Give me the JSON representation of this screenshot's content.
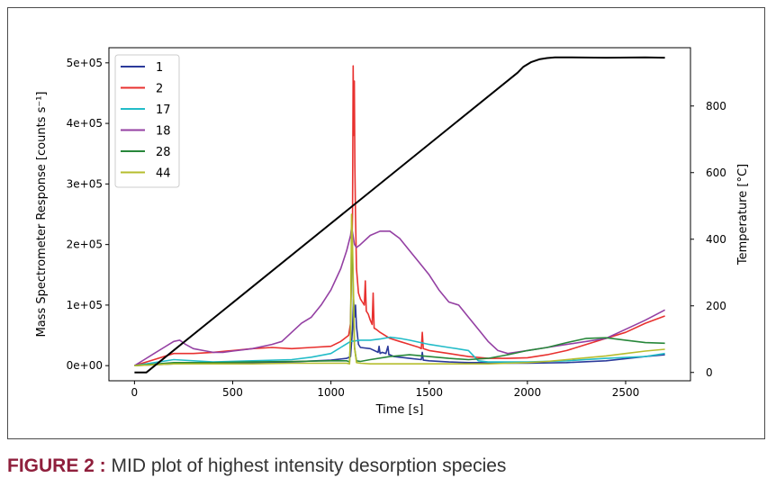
{
  "caption": {
    "label": "FIGURE 2 :",
    "text": "MID plot of highest intensity desorption species"
  },
  "chart_data": {
    "type": "line",
    "xlabel": "Time [s]",
    "ylabel": "Mass Spectrometer Response [counts s⁻¹]",
    "y2label": "Temperature [°C]",
    "xlim": [
      -130,
      2830
    ],
    "ylim": [
      -25000,
      525000
    ],
    "y2lim": [
      -25,
      975
    ],
    "xticks": [
      0,
      500,
      1000,
      1500,
      2000,
      2500
    ],
    "xtick_labels": [
      "0",
      "500",
      "1000",
      "1500",
      "2000",
      "2500"
    ],
    "yticks": [
      0,
      100000,
      200000,
      300000,
      400000,
      500000
    ],
    "ytick_labels": [
      "0e+00",
      "1e+05",
      "2e+05",
      "3e+05",
      "4e+05",
      "5e+05"
    ],
    "y2ticks": [
      0,
      200,
      400,
      600,
      800
    ],
    "y2tick_labels": [
      "0",
      "200",
      "400",
      "600",
      "800"
    ],
    "legend_position": "top-left",
    "series": [
      {
        "name": "1",
        "color": "#2b3a9a",
        "axis": "left",
        "x": [
          0,
          200,
          400,
          600,
          800,
          1000,
          1080,
          1100,
          1110,
          1115,
          1120,
          1125,
          1130,
          1140,
          1150,
          1200,
          1240,
          1245,
          1250,
          1260,
          1280,
          1290,
          1295,
          1300,
          1320,
          1400,
          1460,
          1465,
          1470,
          1500,
          1600,
          1700,
          1800,
          1900,
          2000,
          2200,
          2400,
          2600,
          2700
        ],
        "y": [
          0,
          3000,
          4000,
          5000,
          6000,
          9000,
          12000,
          15000,
          60000,
          110000,
          80000,
          100000,
          65000,
          35000,
          30000,
          28000,
          22000,
          32000,
          20000,
          22000,
          20000,
          32000,
          18000,
          18000,
          15000,
          12000,
          10000,
          22000,
          9000,
          8000,
          6000,
          5000,
          5000,
          4000,
          4000,
          5000,
          8000,
          15000,
          18000
        ]
      },
      {
        "name": "2",
        "color": "#e8312f",
        "axis": "left",
        "x": [
          0,
          100,
          200,
          300,
          400,
          500,
          600,
          700,
          800,
          900,
          1000,
          1050,
          1090,
          1100,
          1110,
          1113,
          1116,
          1119,
          1122,
          1125,
          1130,
          1140,
          1150,
          1160,
          1170,
          1175,
          1180,
          1190,
          1200,
          1210,
          1215,
          1220,
          1230,
          1250,
          1300,
          1350,
          1400,
          1450,
          1460,
          1465,
          1470,
          1500,
          1600,
          1700,
          1800,
          1900,
          2000,
          2100,
          2200,
          2300,
          2400,
          2500,
          2600,
          2700
        ],
        "y": [
          0,
          10000,
          20000,
          20000,
          22000,
          25000,
          28000,
          30000,
          28000,
          30000,
          32000,
          40000,
          50000,
          70000,
          250000,
          495000,
          380000,
          470000,
          330000,
          250000,
          160000,
          120000,
          110000,
          105000,
          100000,
          140000,
          90000,
          85000,
          75000,
          68000,
          120000,
          62000,
          60000,
          55000,
          45000,
          40000,
          35000,
          30000,
          28000,
          55000,
          28000,
          25000,
          20000,
          15000,
          12000,
          12000,
          13000,
          18000,
          25000,
          35000,
          45000,
          55000,
          70000,
          82000
        ]
      },
      {
        "name": "17",
        "color": "#22bcc8",
        "axis": "left",
        "x": [
          0,
          200,
          400,
          600,
          800,
          900,
          1000,
          1050,
          1100,
          1150,
          1200,
          1250,
          1300,
          1350,
          1400,
          1500,
          1600,
          1700,
          1750,
          1800,
          1900,
          2000,
          2200,
          2400,
          2600,
          2700
        ],
        "y": [
          0,
          10000,
          6000,
          8000,
          10000,
          14000,
          20000,
          30000,
          40000,
          42000,
          42000,
          44000,
          47000,
          45000,
          42000,
          35000,
          30000,
          25000,
          8000,
          6000,
          6000,
          6000,
          8000,
          12000,
          15000,
          20000
        ]
      },
      {
        "name": "18",
        "color": "#9440a3",
        "axis": "left",
        "x": [
          0,
          50,
          100,
          150,
          200,
          230,
          260,
          300,
          350,
          400,
          450,
          500,
          600,
          700,
          750,
          800,
          850,
          900,
          950,
          1000,
          1050,
          1080,
          1100,
          1105,
          1110,
          1120,
          1130,
          1150,
          1200,
          1250,
          1300,
          1350,
          1400,
          1450,
          1500,
          1550,
          1600,
          1650,
          1700,
          1750,
          1800,
          1850,
          1900,
          2000,
          2100,
          2200,
          2300,
          2400,
          2500,
          2600,
          2700
        ],
        "y": [
          0,
          10000,
          20000,
          30000,
          40000,
          42000,
          35000,
          28000,
          25000,
          22000,
          22000,
          24000,
          28000,
          35000,
          40000,
          55000,
          70000,
          80000,
          100000,
          125000,
          160000,
          190000,
          215000,
          228000,
          220000,
          200000,
          195000,
          200000,
          215000,
          222000,
          222000,
          210000,
          190000,
          170000,
          150000,
          125000,
          105000,
          100000,
          80000,
          60000,
          40000,
          25000,
          20000,
          25000,
          30000,
          35000,
          40000,
          45000,
          60000,
          75000,
          92000
        ]
      },
      {
        "name": "28",
        "color": "#27873a",
        "axis": "left",
        "x": [
          0,
          200,
          400,
          600,
          800,
          1000,
          1080,
          1095,
          1100,
          1105,
          1110,
          1115,
          1120,
          1130,
          1150,
          1200,
          1300,
          1400,
          1500,
          1600,
          1700,
          1800,
          1900,
          2000,
          2100,
          2200,
          2300,
          2400,
          2500,
          2600,
          2700
        ],
        "y": [
          0,
          5000,
          5000,
          6000,
          7000,
          8000,
          8000,
          6000,
          50000,
          220000,
          180000,
          100000,
          30000,
          8000,
          7000,
          10000,
          15000,
          18000,
          15000,
          12000,
          10000,
          12000,
          18000,
          25000,
          30000,
          38000,
          45000,
          46000,
          42000,
          38000,
          37000
        ]
      },
      {
        "name": "44",
        "color": "#b6bd2d",
        "axis": "left",
        "x": [
          0,
          200,
          400,
          600,
          800,
          1000,
          1080,
          1095,
          1100,
          1105,
          1110,
          1115,
          1120,
          1130,
          1150,
          1200,
          1300,
          1400,
          1500,
          1600,
          1700,
          1800,
          1900,
          2000,
          2100,
          2200,
          2300,
          2400,
          2500,
          2600,
          2700
        ],
        "y": [
          0,
          3000,
          3000,
          3000,
          4000,
          4000,
          4000,
          3000,
          50000,
          250000,
          200000,
          120000,
          30000,
          5000,
          4000,
          3000,
          3000,
          3000,
          3000,
          3000,
          3000,
          3000,
          4000,
          5000,
          7000,
          10000,
          13000,
          16000,
          20000,
          24000,
          27000
        ]
      },
      {
        "name": "Temperature",
        "color": "#000000",
        "axis": "right",
        "in_legend": false,
        "x": [
          0,
          60,
          1950,
          1980,
          2020,
          2060,
          2100,
          2140,
          2200,
          2400,
          2600,
          2700
        ],
        "y": [
          0,
          0,
          900,
          918,
          932,
          940,
          944,
          946,
          946,
          945,
          946,
          945
        ]
      }
    ]
  }
}
